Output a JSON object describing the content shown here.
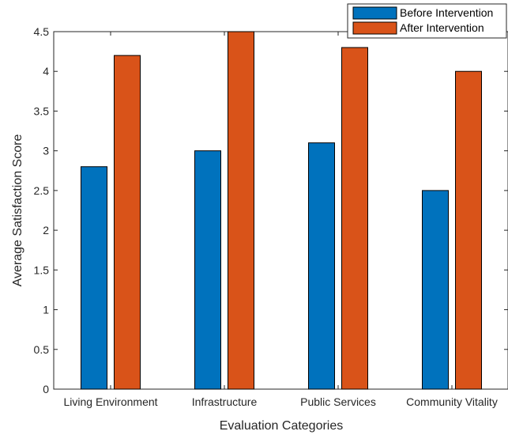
{
  "chart_data": {
    "type": "bar",
    "title": "",
    "xlabel": "Evaluation Categories",
    "ylabel": "Average Satisfaction Score",
    "categories": [
      "Living Environment",
      "Infrastructure",
      "Public Services",
      "Community Vitality"
    ],
    "series": [
      {
        "name": "Before Intervention",
        "values": [
          2.8,
          3.0,
          3.1,
          2.5
        ],
        "color": "#0072BD"
      },
      {
        "name": "After Intervention",
        "values": [
          4.2,
          4.5,
          4.3,
          4.0
        ],
        "color": "#D95319"
      }
    ],
    "ylim": [
      0,
      4.5
    ],
    "yticks": [
      "0",
      "0.5",
      "1",
      "1.5",
      "2",
      "2.5",
      "3",
      "3.5",
      "4",
      "4.5"
    ],
    "grid": false,
    "legend_position": "top-right"
  }
}
